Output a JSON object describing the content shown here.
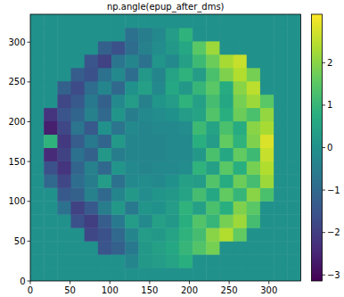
{
  "chart_data": {
    "type": "heatmap",
    "title": "np.angle(epup_after_dms)",
    "color": "viridis",
    "xlim": [
      0,
      340
    ],
    "ylim": [
      0,
      335
    ],
    "xticks": [
      0,
      50,
      100,
      150,
      200,
      250,
      300
    ],
    "yticks": [
      0,
      50,
      100,
      150,
      200,
      250,
      300
    ],
    "cells": [
      [
        0,
        0,
        0,
        0,
        0,
        0,
        0,
        0,
        0,
        0,
        0,
        0,
        0,
        0,
        0,
        0,
        0,
        0,
        0,
        0
      ],
      [
        0,
        0,
        0,
        0,
        0,
        0,
        0,
        -0.3,
        0.2,
        0.3,
        0.5,
        0.8,
        0,
        0,
        0,
        0,
        0,
        0,
        0,
        0
      ],
      [
        0,
        0,
        0,
        0,
        0,
        -1.5,
        -1.2,
        -0.6,
        0.2,
        0.4,
        0.6,
        1.0,
        1.4,
        1.8,
        0,
        0,
        0,
        0,
        0,
        0
      ],
      [
        0,
        0,
        0,
        0,
        -1.8,
        -1.6,
        -1.0,
        -0.3,
        0.3,
        0.2,
        0.5,
        0.9,
        1.2,
        2.0,
        2.4,
        1.6,
        0,
        0,
        0,
        0
      ],
      [
        0,
        0,
        0,
        -1.6,
        -2.0,
        -1.3,
        -0.6,
        0.3,
        -0.2,
        0.4,
        0.2,
        0.8,
        1.4,
        1.0,
        1.8,
        2.2,
        1.2,
        0,
        0,
        0
      ],
      [
        0,
        0,
        -0.8,
        -1.9,
        -1.4,
        -0.5,
        0.2,
        -0.6,
        0.1,
        0.0,
        0.3,
        0.9,
        0.4,
        1.3,
        0.8,
        1.9,
        1.5,
        0,
        0,
        0
      ],
      [
        0,
        0,
        -1.4,
        -1.2,
        -0.4,
        -1.0,
        -0.3,
        0.2,
        -0.1,
        0.1,
        0.2,
        0.5,
        1.2,
        0.6,
        1.6,
        1.0,
        2.0,
        1.3,
        0,
        0
      ],
      [
        0,
        -1.0,
        -1.8,
        -0.9,
        -0.5,
        0.3,
        -0.8,
        -0.2,
        -0.1,
        -0.2,
        0.0,
        0.4,
        0.3,
        1.4,
        0.7,
        1.7,
        1.2,
        2.2,
        0,
        0
      ],
      [
        0,
        -1.6,
        -2.2,
        -1.1,
        -0.4,
        -1.0,
        0.1,
        -0.2,
        -0.3,
        -0.2,
        -0.2,
        -0.1,
        0.9,
        0.4,
        1.5,
        0.8,
        1.8,
        2.4,
        0,
        0
      ],
      [
        0,
        -2.4,
        -1.9,
        -0.8,
        -1.2,
        0.2,
        -0.5,
        -0.3,
        -0.3,
        -0.3,
        -0.2,
        -0.2,
        0.2,
        1.3,
        0.6,
        1.6,
        1.1,
        2.6,
        0,
        0
      ],
      [
        0,
        0.9,
        -2.1,
        -1.3,
        -0.6,
        -1.1,
        0.2,
        -0.3,
        -0.3,
        -0.3,
        -0.2,
        -0.2,
        0.8,
        0.3,
        1.6,
        0.9,
        1.9,
        2.8,
        0,
        0
      ],
      [
        0,
        -2.6,
        -1.8,
        -0.7,
        -1.4,
        0.0,
        -0.7,
        -0.2,
        -0.3,
        -0.2,
        -0.2,
        -0.1,
        1.1,
        0.5,
        1.3,
        0.7,
        2.0,
        2.3,
        0,
        0
      ],
      [
        0,
        -2.2,
        -1.5,
        -1.1,
        -0.4,
        -1.0,
        0.1,
        -0.5,
        -0.2,
        -0.1,
        0.0,
        0.3,
        0.5,
        1.4,
        0.8,
        1.7,
        1.3,
        2.1,
        0,
        0
      ],
      [
        0,
        0,
        -1.8,
        -1.4,
        -0.6,
        -1.2,
        -0.2,
        0.3,
        -0.4,
        0.1,
        0.3,
        0.9,
        0.4,
        1.2,
        0.6,
        1.8,
        2.2,
        1.5,
        0,
        0
      ],
      [
        0,
        0,
        -1.2,
        -1.7,
        -0.9,
        -0.3,
        -1.0,
        0.0,
        0.4,
        -0.2,
        0.6,
        0.2,
        1.0,
        1.5,
        0.7,
        2.0,
        2.5,
        0,
        0,
        0
      ],
      [
        0,
        0,
        0,
        -1.3,
        -1.6,
        -0.8,
        -0.2,
        -0.9,
        0.2,
        -0.3,
        0.5,
        0.9,
        0.3,
        1.3,
        1.9,
        2.4,
        1.8,
        0,
        0,
        0
      ],
      [
        0,
        0,
        0,
        0,
        -1.5,
        -1.9,
        -0.7,
        -0.3,
        -0.8,
        0.1,
        -0.2,
        0.4,
        1.1,
        1.7,
        2.3,
        2.6,
        0,
        0,
        0,
        0
      ],
      [
        0,
        0,
        0,
        0,
        0,
        -1.2,
        -1.6,
        -0.9,
        -0.4,
        -0.1,
        0.2,
        0.6,
        1.5,
        2.2,
        0,
        0,
        0,
        0,
        0,
        0
      ],
      [
        0,
        0,
        0,
        0,
        0,
        0,
        0,
        -0.8,
        -0.5,
        -0.2,
        0.3,
        0.9,
        0,
        0,
        0,
        0,
        0,
        0,
        0,
        0
      ],
      [
        0,
        0,
        0,
        0,
        0,
        0,
        0,
        0,
        0,
        0,
        0,
        0,
        0,
        0,
        0,
        0,
        0,
        0,
        0,
        0
      ]
    ],
    "colorbar": {
      "range": [
        -3.1416,
        3.1416
      ],
      "ticks": [
        {
          "value": -3,
          "label": "−3"
        },
        {
          "value": -2,
          "label": "−2"
        },
        {
          "value": -1,
          "label": "−1"
        },
        0,
        1,
        2
      ]
    }
  }
}
